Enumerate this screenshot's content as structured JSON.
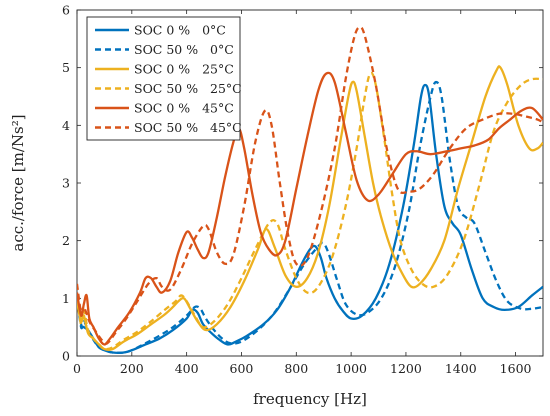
{
  "chart_data": {
    "type": "line",
    "title": "",
    "xlabel": "frequency [Hz]",
    "ylabel": "acc./force [m/Ns²]",
    "xlim": [
      0,
      1700
    ],
    "ylim": [
      0,
      6
    ],
    "x_ticks": [
      "0",
      "200",
      "400",
      "600",
      "800",
      "1000",
      "1200",
      "1400",
      "1600"
    ],
    "x_tick_values": [
      0,
      200,
      400,
      600,
      800,
      1000,
      1200,
      1400,
      1600
    ],
    "y_ticks": [
      "0",
      "1",
      "2",
      "3",
      "4",
      "5",
      "6"
    ],
    "y_tick_values": [
      0,
      1,
      2,
      3,
      4,
      5,
      6
    ],
    "grid": false,
    "legend_position": "top-left",
    "series": [
      {
        "name": "SOC 0 %   0°C",
        "color": "#0072BD",
        "dash": "solid",
        "points": [
          [
            0,
            1.05
          ],
          [
            15,
            0.55
          ],
          [
            25,
            0.5
          ],
          [
            40,
            0.45
          ],
          [
            60,
            0.3
          ],
          [
            80,
            0.15
          ],
          [
            100,
            0.1
          ],
          [
            130,
            0.06
          ],
          [
            170,
            0.06
          ],
          [
            200,
            0.1
          ],
          [
            250,
            0.2
          ],
          [
            300,
            0.3
          ],
          [
            350,
            0.45
          ],
          [
            400,
            0.65
          ],
          [
            420,
            0.8
          ],
          [
            440,
            0.75
          ],
          [
            460,
            0.55
          ],
          [
            490,
            0.4
          ],
          [
            520,
            0.28
          ],
          [
            550,
            0.2
          ],
          [
            580,
            0.25
          ],
          [
            620,
            0.35
          ],
          [
            680,
            0.55
          ],
          [
            730,
            0.8
          ],
          [
            780,
            1.2
          ],
          [
            820,
            1.6
          ],
          [
            850,
            1.85
          ],
          [
            870,
            1.9
          ],
          [
            890,
            1.7
          ],
          [
            910,
            1.35
          ],
          [
            940,
            1.0
          ],
          [
            970,
            0.78
          ],
          [
            1000,
            0.65
          ],
          [
            1040,
            0.7
          ],
          [
            1090,
            1.0
          ],
          [
            1140,
            1.6
          ],
          [
            1190,
            2.6
          ],
          [
            1230,
            3.7
          ],
          [
            1255,
            4.5
          ],
          [
            1270,
            4.7
          ],
          [
            1285,
            4.5
          ],
          [
            1310,
            3.5
          ],
          [
            1340,
            2.6
          ],
          [
            1370,
            2.3
          ],
          [
            1400,
            2.1
          ],
          [
            1440,
            1.5
          ],
          [
            1480,
            1.0
          ],
          [
            1520,
            0.85
          ],
          [
            1560,
            0.8
          ],
          [
            1610,
            0.85
          ],
          [
            1660,
            1.05
          ],
          [
            1700,
            1.2
          ]
        ]
      },
      {
        "name": "SOC 50 %   0°C",
        "color": "#0072BD",
        "dash": "dashed",
        "points": [
          [
            0,
            1.05
          ],
          [
            15,
            0.5
          ],
          [
            25,
            0.6
          ],
          [
            40,
            0.45
          ],
          [
            60,
            0.28
          ],
          [
            80,
            0.15
          ],
          [
            100,
            0.1
          ],
          [
            130,
            0.06
          ],
          [
            170,
            0.06
          ],
          [
            200,
            0.1
          ],
          [
            250,
            0.22
          ],
          [
            300,
            0.35
          ],
          [
            350,
            0.5
          ],
          [
            400,
            0.7
          ],
          [
            430,
            0.85
          ],
          [
            450,
            0.82
          ],
          [
            470,
            0.65
          ],
          [
            500,
            0.45
          ],
          [
            530,
            0.3
          ],
          [
            560,
            0.22
          ],
          [
            600,
            0.25
          ],
          [
            660,
            0.45
          ],
          [
            720,
            0.75
          ],
          [
            780,
            1.2
          ],
          [
            830,
            1.6
          ],
          [
            880,
            1.9
          ],
          [
            900,
            1.95
          ],
          [
            920,
            1.75
          ],
          [
            950,
            1.3
          ],
          [
            980,
            0.9
          ],
          [
            1020,
            0.72
          ],
          [
            1060,
            0.75
          ],
          [
            1110,
            1.0
          ],
          [
            1160,
            1.55
          ],
          [
            1210,
            2.5
          ],
          [
            1250,
            3.6
          ],
          [
            1290,
            4.5
          ],
          [
            1310,
            4.75
          ],
          [
            1330,
            4.5
          ],
          [
            1360,
            3.4
          ],
          [
            1390,
            2.6
          ],
          [
            1420,
            2.4
          ],
          [
            1450,
            2.3
          ],
          [
            1490,
            1.8
          ],
          [
            1530,
            1.3
          ],
          [
            1570,
            0.95
          ],
          [
            1620,
            0.82
          ],
          [
            1660,
            0.82
          ],
          [
            1700,
            0.85
          ]
        ]
      },
      {
        "name": "SOC 0 %   25°C",
        "color": "#EDB120",
        "dash": "solid",
        "points": [
          [
            0,
            0.95
          ],
          [
            15,
            0.6
          ],
          [
            25,
            0.7
          ],
          [
            40,
            0.4
          ],
          [
            60,
            0.3
          ],
          [
            80,
            0.2
          ],
          [
            100,
            0.12
          ],
          [
            130,
            0.12
          ],
          [
            170,
            0.25
          ],
          [
            220,
            0.38
          ],
          [
            270,
            0.55
          ],
          [
            320,
            0.72
          ],
          [
            350,
            0.85
          ],
          [
            370,
            0.95
          ],
          [
            390,
            1.0
          ],
          [
            410,
            0.85
          ],
          [
            440,
            0.6
          ],
          [
            470,
            0.45
          ],
          [
            510,
            0.55
          ],
          [
            560,
            0.85
          ],
          [
            610,
            1.3
          ],
          [
            660,
            1.85
          ],
          [
            690,
            2.2
          ],
          [
            720,
            1.9
          ],
          [
            760,
            1.4
          ],
          [
            800,
            1.2
          ],
          [
            840,
            1.35
          ],
          [
            880,
            1.8
          ],
          [
            920,
            2.6
          ],
          [
            960,
            3.7
          ],
          [
            990,
            4.5
          ],
          [
            1005,
            4.75
          ],
          [
            1020,
            4.6
          ],
          [
            1050,
            3.8
          ],
          [
            1080,
            3.0
          ],
          [
            1110,
            2.4
          ],
          [
            1150,
            1.8
          ],
          [
            1190,
            1.4
          ],
          [
            1220,
            1.2
          ],
          [
            1250,
            1.25
          ],
          [
            1290,
            1.5
          ],
          [
            1340,
            2.0
          ],
          [
            1390,
            2.9
          ],
          [
            1440,
            3.7
          ],
          [
            1490,
            4.5
          ],
          [
            1530,
            4.95
          ],
          [
            1545,
            5.0
          ],
          [
            1570,
            4.7
          ],
          [
            1610,
            4.0
          ],
          [
            1650,
            3.6
          ],
          [
            1680,
            3.6
          ],
          [
            1700,
            3.7
          ]
        ]
      },
      {
        "name": "SOC 50 %   25°C",
        "color": "#EDB120",
        "dash": "dashed",
        "points": [
          [
            0,
            1.0
          ],
          [
            15,
            0.55
          ],
          [
            25,
            0.8
          ],
          [
            40,
            0.45
          ],
          [
            60,
            0.3
          ],
          [
            80,
            0.2
          ],
          [
            100,
            0.12
          ],
          [
            130,
            0.15
          ],
          [
            170,
            0.28
          ],
          [
            220,
            0.42
          ],
          [
            270,
            0.6
          ],
          [
            320,
            0.8
          ],
          [
            360,
            0.95
          ],
          [
            380,
            1.05
          ],
          [
            400,
            0.95
          ],
          [
            430,
            0.7
          ],
          [
            460,
            0.5
          ],
          [
            500,
            0.6
          ],
          [
            550,
            0.9
          ],
          [
            600,
            1.35
          ],
          [
            650,
            1.85
          ],
          [
            700,
            2.3
          ],
          [
            730,
            2.3
          ],
          [
            760,
            1.85
          ],
          [
            800,
            1.35
          ],
          [
            840,
            1.1
          ],
          [
            880,
            1.2
          ],
          [
            930,
            1.7
          ],
          [
            980,
            2.6
          ],
          [
            1020,
            3.6
          ],
          [
            1050,
            4.5
          ],
          [
            1070,
            4.9
          ],
          [
            1090,
            4.7
          ],
          [
            1120,
            3.8
          ],
          [
            1150,
            2.8
          ],
          [
            1180,
            2.0
          ],
          [
            1220,
            1.5
          ],
          [
            1260,
            1.25
          ],
          [
            1300,
            1.2
          ],
          [
            1350,
            1.4
          ],
          [
            1410,
            2.0
          ],
          [
            1470,
            3.0
          ],
          [
            1520,
            3.9
          ],
          [
            1570,
            4.4
          ],
          [
            1620,
            4.7
          ],
          [
            1660,
            4.8
          ],
          [
            1700,
            4.8
          ]
        ]
      },
      {
        "name": "SOC 0 %   45°C",
        "color": "#D95319",
        "dash": "solid",
        "points": [
          [
            0,
            1.1
          ],
          [
            15,
            0.7
          ],
          [
            25,
            0.9
          ],
          [
            35,
            1.05
          ],
          [
            45,
            0.65
          ],
          [
            60,
            0.5
          ],
          [
            80,
            0.3
          ],
          [
            100,
            0.2
          ],
          [
            120,
            0.3
          ],
          [
            150,
            0.5
          ],
          [
            190,
            0.75
          ],
          [
            230,
            1.1
          ],
          [
            250,
            1.35
          ],
          [
            270,
            1.35
          ],
          [
            290,
            1.2
          ],
          [
            310,
            1.1
          ],
          [
            340,
            1.3
          ],
          [
            370,
            1.8
          ],
          [
            400,
            2.15
          ],
          [
            420,
            2.05
          ],
          [
            440,
            1.85
          ],
          [
            460,
            1.7
          ],
          [
            480,
            1.8
          ],
          [
            510,
            2.4
          ],
          [
            540,
            3.1
          ],
          [
            570,
            3.7
          ],
          [
            590,
            3.95
          ],
          [
            610,
            3.6
          ],
          [
            640,
            2.8
          ],
          [
            670,
            2.15
          ],
          [
            700,
            1.85
          ],
          [
            730,
            1.75
          ],
          [
            760,
            2.0
          ],
          [
            800,
            2.9
          ],
          [
            840,
            3.8
          ],
          [
            880,
            4.6
          ],
          [
            910,
            4.9
          ],
          [
            940,
            4.75
          ],
          [
            980,
            3.9
          ],
          [
            1020,
            3.05
          ],
          [
            1060,
            2.7
          ],
          [
            1100,
            2.8
          ],
          [
            1150,
            3.15
          ],
          [
            1200,
            3.5
          ],
          [
            1240,
            3.55
          ],
          [
            1290,
            3.5
          ],
          [
            1350,
            3.55
          ],
          [
            1400,
            3.6
          ],
          [
            1450,
            3.65
          ],
          [
            1500,
            3.75
          ],
          [
            1540,
            3.95
          ],
          [
            1580,
            4.1
          ],
          [
            1620,
            4.25
          ],
          [
            1660,
            4.3
          ],
          [
            1700,
            4.1
          ]
        ]
      },
      {
        "name": "SOC 50 %   45°C",
        "color": "#D95319",
        "dash": "dashed",
        "points": [
          [
            0,
            1.25
          ],
          [
            15,
            0.75
          ],
          [
            25,
            0.85
          ],
          [
            45,
            0.6
          ],
          [
            65,
            0.45
          ],
          [
            90,
            0.28
          ],
          [
            110,
            0.22
          ],
          [
            140,
            0.4
          ],
          [
            180,
            0.65
          ],
          [
            220,
            0.95
          ],
          [
            260,
            1.25
          ],
          [
            290,
            1.35
          ],
          [
            310,
            1.2
          ],
          [
            340,
            1.15
          ],
          [
            380,
            1.5
          ],
          [
            420,
            1.95
          ],
          [
            460,
            2.25
          ],
          [
            480,
            2.2
          ],
          [
            510,
            1.8
          ],
          [
            540,
            1.6
          ],
          [
            570,
            1.75
          ],
          [
            610,
            2.6
          ],
          [
            650,
            3.7
          ],
          [
            685,
            4.25
          ],
          [
            710,
            4.0
          ],
          [
            740,
            3.0
          ],
          [
            770,
            2.1
          ],
          [
            800,
            1.6
          ],
          [
            840,
            1.7
          ],
          [
            890,
            2.5
          ],
          [
            940,
            3.6
          ],
          [
            980,
            4.8
          ],
          [
            1010,
            5.5
          ],
          [
            1030,
            5.7
          ],
          [
            1050,
            5.55
          ],
          [
            1090,
            4.7
          ],
          [
            1130,
            3.6
          ],
          [
            1170,
            2.9
          ],
          [
            1210,
            2.85
          ],
          [
            1250,
            2.9
          ],
          [
            1300,
            3.15
          ],
          [
            1360,
            3.6
          ],
          [
            1420,
            3.95
          ],
          [
            1480,
            4.1
          ],
          [
            1540,
            4.2
          ],
          [
            1590,
            4.2
          ],
          [
            1640,
            4.15
          ],
          [
            1680,
            4.1
          ],
          [
            1700,
            4.05
          ]
        ]
      }
    ]
  }
}
